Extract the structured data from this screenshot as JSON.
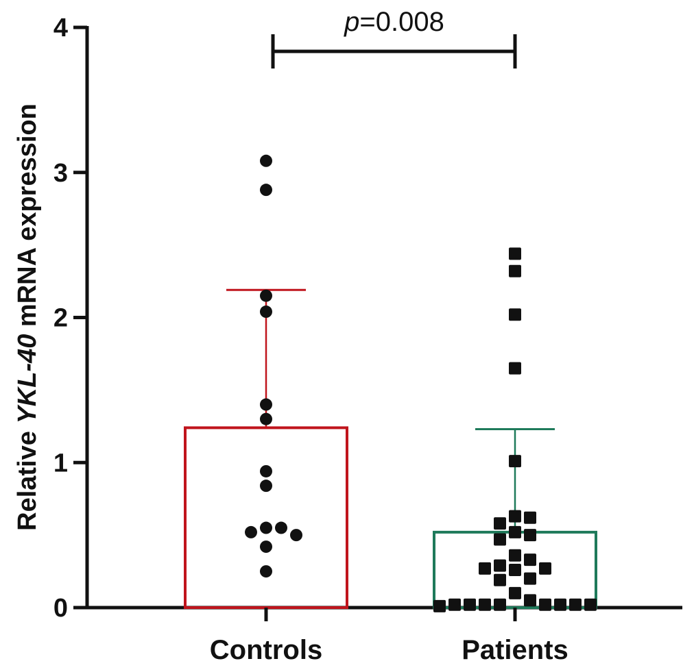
{
  "chart_data": {
    "type": "bar",
    "title": "",
    "xlabel": "",
    "ylabel": {
      "prefix": "Relative ",
      "gene": "YKL-40",
      "suffix": " mRNA expression"
    },
    "ylim": [
      0,
      4
    ],
    "yticks": [
      0,
      1,
      2,
      3,
      4
    ],
    "ytick_labels": [
      "0",
      "1",
      "2",
      "3",
      "4"
    ],
    "categories": [
      "Controls",
      "Patients"
    ],
    "series": [
      {
        "name": "Controls",
        "color": "#c0141c",
        "mean": 1.24,
        "sd_upper": 2.19,
        "points": [
          3.08,
          2.88,
          2.15,
          2.04,
          1.4,
          1.3,
          0.94,
          0.84,
          0.55,
          0.52,
          0.5,
          0.55,
          0.42,
          0.25
        ],
        "marker": "circle"
      },
      {
        "name": "Patients",
        "color": "#1e7a5a",
        "mean": 0.52,
        "sd_upper": 1.23,
        "points": [
          2.44,
          2.32,
          2.02,
          1.65,
          1.01,
          0.63,
          0.62,
          0.58,
          0.52,
          0.5,
          0.47,
          0.36,
          0.33,
          0.29,
          0.27,
          0.27,
          0.26,
          0.2,
          0.19,
          0.1,
          0.05,
          0.02,
          0.02,
          0.02,
          0.02,
          0.02,
          0.02,
          0.02,
          0.02,
          0.01
        ],
        "marker": "square"
      }
    ],
    "annotation": {
      "p_symbol": "p",
      "p_text": "=0.008"
    }
  }
}
